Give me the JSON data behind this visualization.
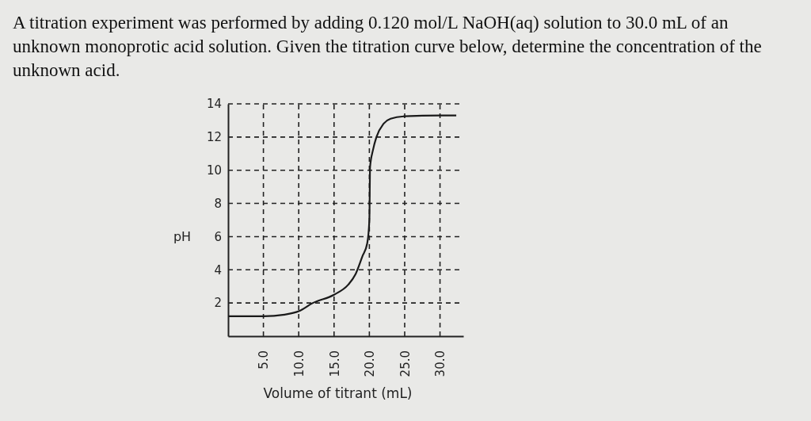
{
  "chart_data": {
    "type": "line",
    "title": "A titration experiment was performed by adding 0.120 mol/L NaOH(aq) solution to 30.0 mL of an unknown monoprotic acid solution. Given the titration curve below, determine the concentration of the unknown acid.",
    "xlabel": "Volume of titrant (mL)",
    "ylabel": "pH",
    "x": [
      0,
      5,
      8,
      10,
      12,
      15,
      17,
      18,
      19,
      19.7,
      20,
      20.1,
      20.5,
      21,
      22,
      23,
      25,
      30,
      32.3
    ],
    "series": [
      {
        "color": "#1a1a1a",
        "values": [
          1.2,
          1.2,
          1.3,
          1.5,
          2.0,
          2.5,
          3.1,
          3.7,
          4.8,
          5.6,
          7.0,
          10.2,
          11.2,
          12.0,
          12.8,
          13.1,
          13.25,
          13.3,
          13.3
        ]
      }
    ],
    "xlim": [
      0,
      33.3
    ],
    "ylim": [
      0,
      14
    ],
    "xticks": [
      {
        "value": 5,
        "label": "5.0"
      },
      {
        "value": 10,
        "label": "10.0"
      },
      {
        "value": 15,
        "label": "15.0"
      },
      {
        "value": 20,
        "label": "20.0"
      },
      {
        "value": 25,
        "label": "25.0"
      },
      {
        "value": 30,
        "label": "30.0"
      }
    ],
    "yticks": [
      2,
      4,
      6,
      8,
      10,
      12,
      14
    ],
    "grid": true,
    "marker": "none",
    "line_style": "solid"
  }
}
